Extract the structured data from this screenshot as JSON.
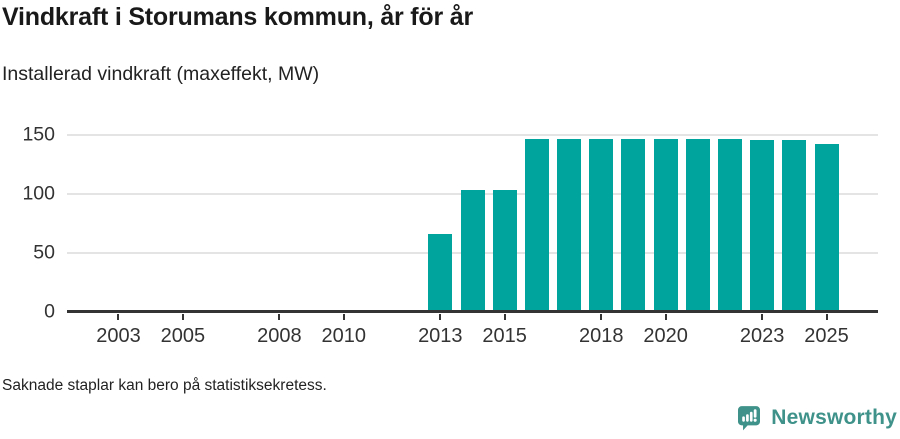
{
  "header": {
    "title": "Vindkraft i Storumans kommun, år för år",
    "subtitle": "Installerad vindkraft (maxeffekt, MW)"
  },
  "footer": {
    "note": "Saknade staplar kan bero på statistiksekretess."
  },
  "branding": {
    "logo_text": "Newsworthy",
    "logo_icon": "newsworthy-speech-bubble-bar-chart-icon",
    "logo_color": "#3f928a"
  },
  "chart_data": {
    "type": "bar",
    "title": "Vindkraft i Storumans kommun, år för år",
    "subtitle": "Installerad vindkraft (maxeffekt, MW)",
    "unit": "MW",
    "categories": [
      2013,
      2014,
      2015,
      2016,
      2017,
      2018,
      2019,
      2020,
      2021,
      2022,
      2023,
      2024,
      2025
    ],
    "values": [
      66,
      103,
      103,
      146,
      146,
      146,
      146,
      146,
      146,
      146,
      145,
      145,
      142
    ],
    "xticks": [
      2003,
      2005,
      2008,
      2010,
      2013,
      2015,
      2018,
      2020,
      2023,
      2025
    ],
    "yticks": [
      0,
      50,
      100,
      150
    ],
    "ylim": [
      0,
      150
    ],
    "x_domain": [
      2001.4,
      2026.6
    ],
    "grid": "horizontal",
    "legend": "none",
    "bar_color": "#00a49c",
    "axis_color": "#343434",
    "gridline_color": "#e4e4e4",
    "note": "Saknade staplar kan bero på statistiksekretess."
  }
}
